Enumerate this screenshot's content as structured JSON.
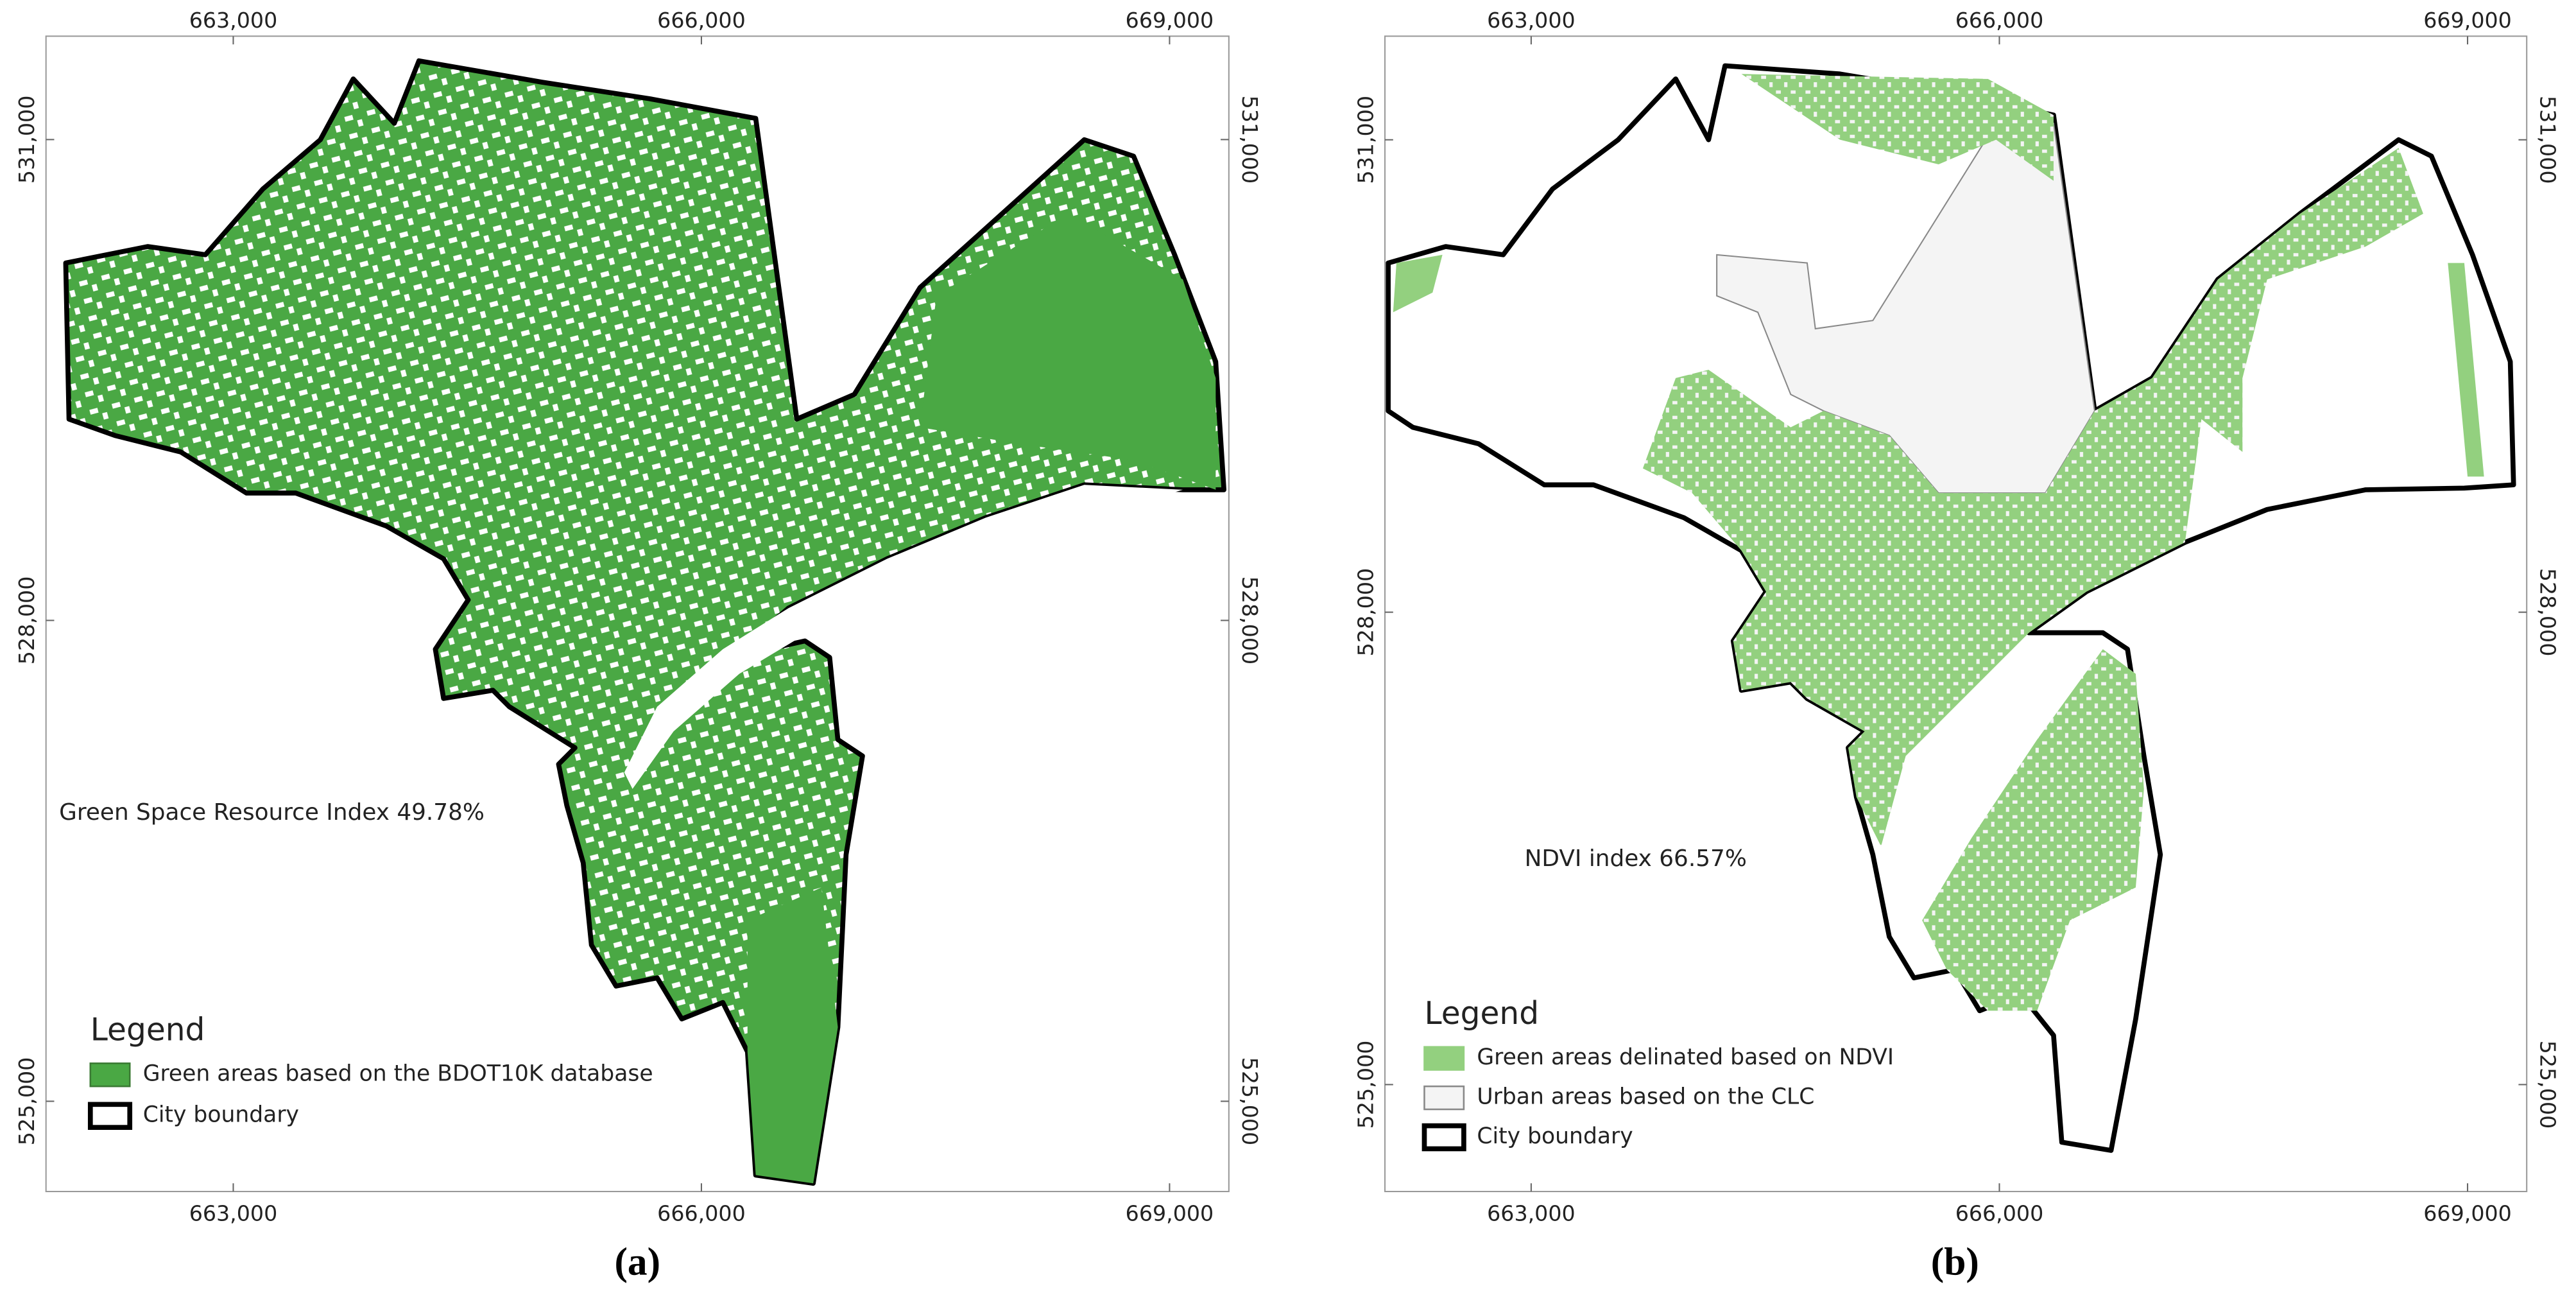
{
  "panels": [
    {
      "label": "(a)",
      "index_text": "Green Space Resource Index 49.78%",
      "xlim": [
        661800,
        669380
      ],
      "ylim": [
        524437,
        531645
      ],
      "xticks": [
        {
          "value": 663000,
          "label": "663,000"
        },
        {
          "value": 666000,
          "label": "666,000"
        },
        {
          "value": 669000,
          "label": "669,000"
        }
      ],
      "yticks": [
        {
          "value": 525000,
          "label": "525,000"
        },
        {
          "value": 528000,
          "label": "528,000"
        },
        {
          "value": 531000,
          "label": "531,000"
        }
      ],
      "legend": {
        "title": "Legend",
        "items": [
          {
            "name": "Green areas based on the BDOT10K database",
            "fill": "#4aa844",
            "stroke": "#3a7a33"
          },
          {
            "name": "City boundary",
            "fill": "#ffffff",
            "stroke": "#000000"
          }
        ]
      }
    },
    {
      "label": "(b)",
      "index_text": "NDVI index 66.57%",
      "xlim": [
        662063,
        669379
      ],
      "ylim": [
        524321,
        531658
      ],
      "xticks": [
        {
          "value": 663000,
          "label": "663,000"
        },
        {
          "value": 666000,
          "label": "666,000"
        },
        {
          "value": 669000,
          "label": "669,000"
        }
      ],
      "yticks": [
        {
          "value": 525000,
          "label": "525,000"
        },
        {
          "value": 528000,
          "label": "528,000"
        },
        {
          "value": 531000,
          "label": "531,000"
        }
      ],
      "legend": {
        "title": "Legend",
        "items": [
          {
            "name": "Green areas delinated based on NDVI",
            "fill": "#93d07f",
            "stroke": "#93d07f"
          },
          {
            "name": "Urban areas based on the CLC",
            "fill": "#f4f4f4",
            "stroke": "#888888"
          },
          {
            "name": "City boundary",
            "fill": "#ffffff",
            "stroke": "#000000"
          }
        ]
      }
    }
  ]
}
